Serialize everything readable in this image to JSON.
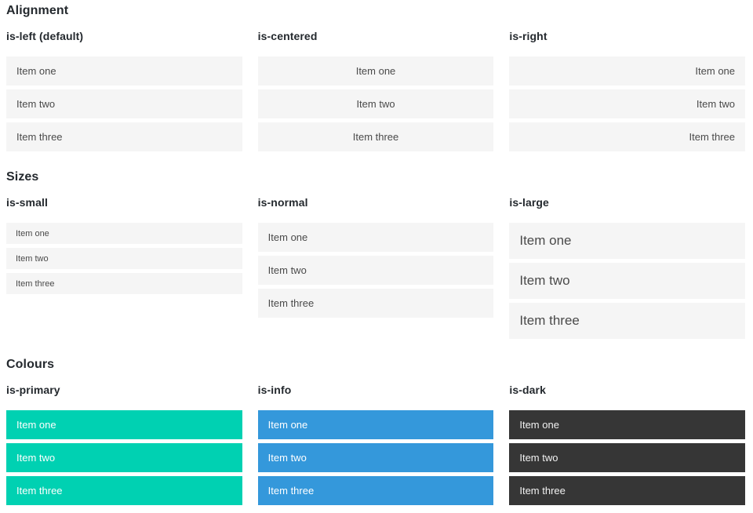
{
  "colors": {
    "heading": "#24292e",
    "item-text": "#4a4a4a",
    "light": "#f5f5f5",
    "primary": "#00d1b2",
    "info": "#3498db",
    "dark": "#363636"
  },
  "sections": [
    {
      "title": "Alignment",
      "columns": [
        {
          "subtitle": "is-left (default)",
          "items": [
            "Item one",
            "Item two",
            "Item three"
          ]
        },
        {
          "subtitle": "is-centered",
          "items": [
            "Item one",
            "Item two",
            "Item three"
          ]
        },
        {
          "subtitle": "is-right",
          "items": [
            "Item one",
            "Item two",
            "Item three"
          ]
        }
      ]
    },
    {
      "title": "Sizes",
      "columns": [
        {
          "subtitle": "is-small",
          "items": [
            "Item one",
            "Item two",
            "Item three"
          ]
        },
        {
          "subtitle": "is-normal",
          "items": [
            "Item one",
            "Item two",
            "Item three"
          ]
        },
        {
          "subtitle": "is-large",
          "items": [
            "Item one",
            "Item two",
            "Item three"
          ]
        }
      ]
    },
    {
      "title": "Colours",
      "columns": [
        {
          "subtitle": "is-primary",
          "items": [
            "Item one",
            "Item two",
            "Item three"
          ]
        },
        {
          "subtitle": "is-info",
          "items": [
            "Item one",
            "Item two",
            "Item three"
          ]
        },
        {
          "subtitle": "is-dark",
          "items": [
            "Item one",
            "Item two",
            "Item three"
          ]
        }
      ]
    }
  ]
}
